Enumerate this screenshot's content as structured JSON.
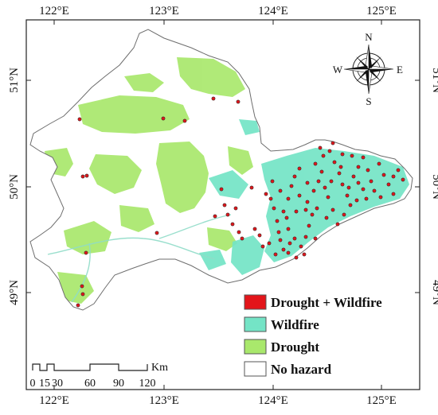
{
  "map": {
    "longitude_ticks": [
      "122°E",
      "123°E",
      "124°E",
      "125°E"
    ],
    "latitude_ticks": [
      "51°N",
      "50°N",
      "49°N"
    ],
    "compass": {
      "north": "N",
      "south": "S",
      "east": "E",
      "west": "W"
    },
    "legend": {
      "items": [
        {
          "label": "Drought + Wildfire",
          "color": "#e3151a"
        },
        {
          "label": "Wildfire",
          "color": "#74e4c6"
        },
        {
          "label": "Drought",
          "color": "#a9e86c"
        },
        {
          "label": "No hazard",
          "color": "#ffffff"
        }
      ]
    },
    "scale_bar": {
      "unit": "Km",
      "ticks": [
        "0",
        "15",
        "30",
        "60",
        "90",
        "120"
      ]
    }
  }
}
